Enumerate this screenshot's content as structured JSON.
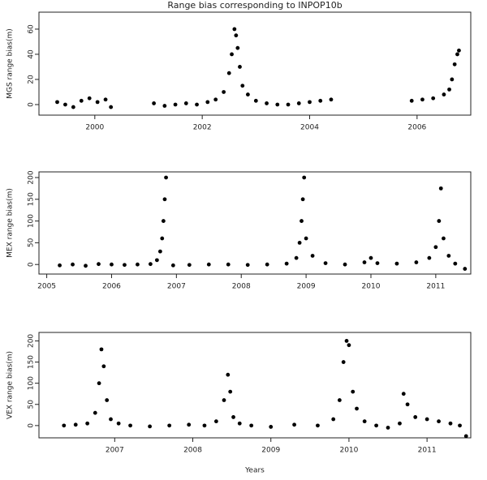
{
  "chart_data": [
    {
      "type": "scatter",
      "title": "Range bias corresponding to INPOP10b",
      "y_label": "MGS range bias(m)",
      "color": "#000000",
      "xlim": [
        1998.96,
        2007.0
      ],
      "xticks": [
        2000,
        2002,
        2004,
        2006
      ],
      "ylim": [
        -8.4,
        73.5
      ],
      "yticks": [
        0,
        20,
        40,
        60
      ],
      "x": [
        1999.3,
        1999.45,
        1999.6,
        1999.75,
        1999.9,
        2000.05,
        2000.2,
        2000.3,
        2001.1,
        2001.3,
        2001.5,
        2001.7,
        2001.9,
        2002.1,
        2002.25,
        2002.4,
        2002.5,
        2002.55,
        2002.6,
        2002.63,
        2002.66,
        2002.7,
        2002.75,
        2002.85,
        2003.0,
        2003.2,
        2003.4,
        2003.6,
        2003.8,
        2004.0,
        2004.2,
        2004.4,
        2005.9,
        2006.1,
        2006.3,
        2006.5,
        2006.6,
        2006.65,
        2006.7,
        2006.75,
        2006.78
      ],
      "values": [
        2,
        0,
        -2,
        3,
        5,
        2,
        4,
        -2,
        1,
        -1,
        0,
        1,
        0,
        2,
        4,
        10,
        25,
        40,
        60,
        55,
        45,
        30,
        15,
        8,
        3,
        1,
        0,
        0,
        1,
        2,
        3,
        4,
        3,
        4,
        5,
        8,
        12,
        20,
        32,
        40,
        43
      ]
    },
    {
      "type": "scatter",
      "y_label": "MEX range bias(m)",
      "color": "#000000",
      "xlim": [
        2004.88,
        2011.54
      ],
      "xticks": [
        2005,
        2006,
        2007,
        2008,
        2009,
        2010,
        2011
      ],
      "ylim": [
        -22,
        213
      ],
      "yticks": [
        0,
        50,
        100,
        150,
        200
      ],
      "x": [
        2005.2,
        2005.4,
        2005.6,
        2005.8,
        2006.0,
        2006.2,
        2006.4,
        2006.6,
        2006.7,
        2006.75,
        2006.78,
        2006.8,
        2006.82,
        2006.84,
        2006.95,
        2007.2,
        2007.5,
        2007.8,
        2008.1,
        2008.4,
        2008.7,
        2008.85,
        2008.9,
        2008.93,
        2008.95,
        2008.97,
        2009.0,
        2009.1,
        2009.3,
        2009.6,
        2009.9,
        2010.0,
        2010.1,
        2010.4,
        2010.7,
        2010.9,
        2011.0,
        2011.05,
        2011.08,
        2011.12,
        2011.2,
        2011.3,
        2011.45
      ],
      "values": [
        -2,
        0,
        -3,
        1,
        0,
        -1,
        0,
        1,
        10,
        30,
        60,
        100,
        150,
        200,
        -2,
        -1,
        0,
        0,
        -1,
        0,
        2,
        15,
        50,
        100,
        150,
        200,
        60,
        20,
        3,
        0,
        5,
        15,
        3,
        2,
        5,
        15,
        40,
        100,
        175,
        60,
        20,
        2,
        -10
      ]
    },
    {
      "type": "scatter",
      "y_label": "VEX range bias(m)",
      "x_label": "Years",
      "color": "#000000",
      "xlim": [
        2006.03,
        2011.56
      ],
      "xticks": [
        2007,
        2008,
        2009,
        2010,
        2011
      ],
      "ylim": [
        -29,
        220
      ],
      "yticks": [
        0,
        50,
        100,
        150,
        200
      ],
      "x": [
        2006.35,
        2006.5,
        2006.65,
        2006.75,
        2006.8,
        2006.83,
        2006.86,
        2006.9,
        2006.95,
        2007.05,
        2007.2,
        2007.45,
        2007.7,
        2007.95,
        2008.15,
        2008.3,
        2008.4,
        2008.45,
        2008.48,
        2008.52,
        2008.6,
        2008.75,
        2009.0,
        2009.3,
        2009.6,
        2009.8,
        2009.88,
        2009.93,
        2009.97,
        2010.0,
        2010.05,
        2010.1,
        2010.2,
        2010.35,
        2010.5,
        2010.65,
        2010.7,
        2010.75,
        2010.85,
        2011.0,
        2011.15,
        2011.3,
        2011.42,
        2011.5
      ],
      "values": [
        0,
        2,
        5,
        30,
        100,
        180,
        140,
        60,
        15,
        5,
        0,
        -2,
        0,
        2,
        0,
        10,
        60,
        120,
        80,
        20,
        5,
        0,
        -3,
        2,
        0,
        15,
        60,
        150,
        200,
        190,
        80,
        40,
        10,
        0,
        -5,
        5,
        75,
        50,
        20,
        15,
        10,
        5,
        0,
        -25
      ]
    }
  ]
}
